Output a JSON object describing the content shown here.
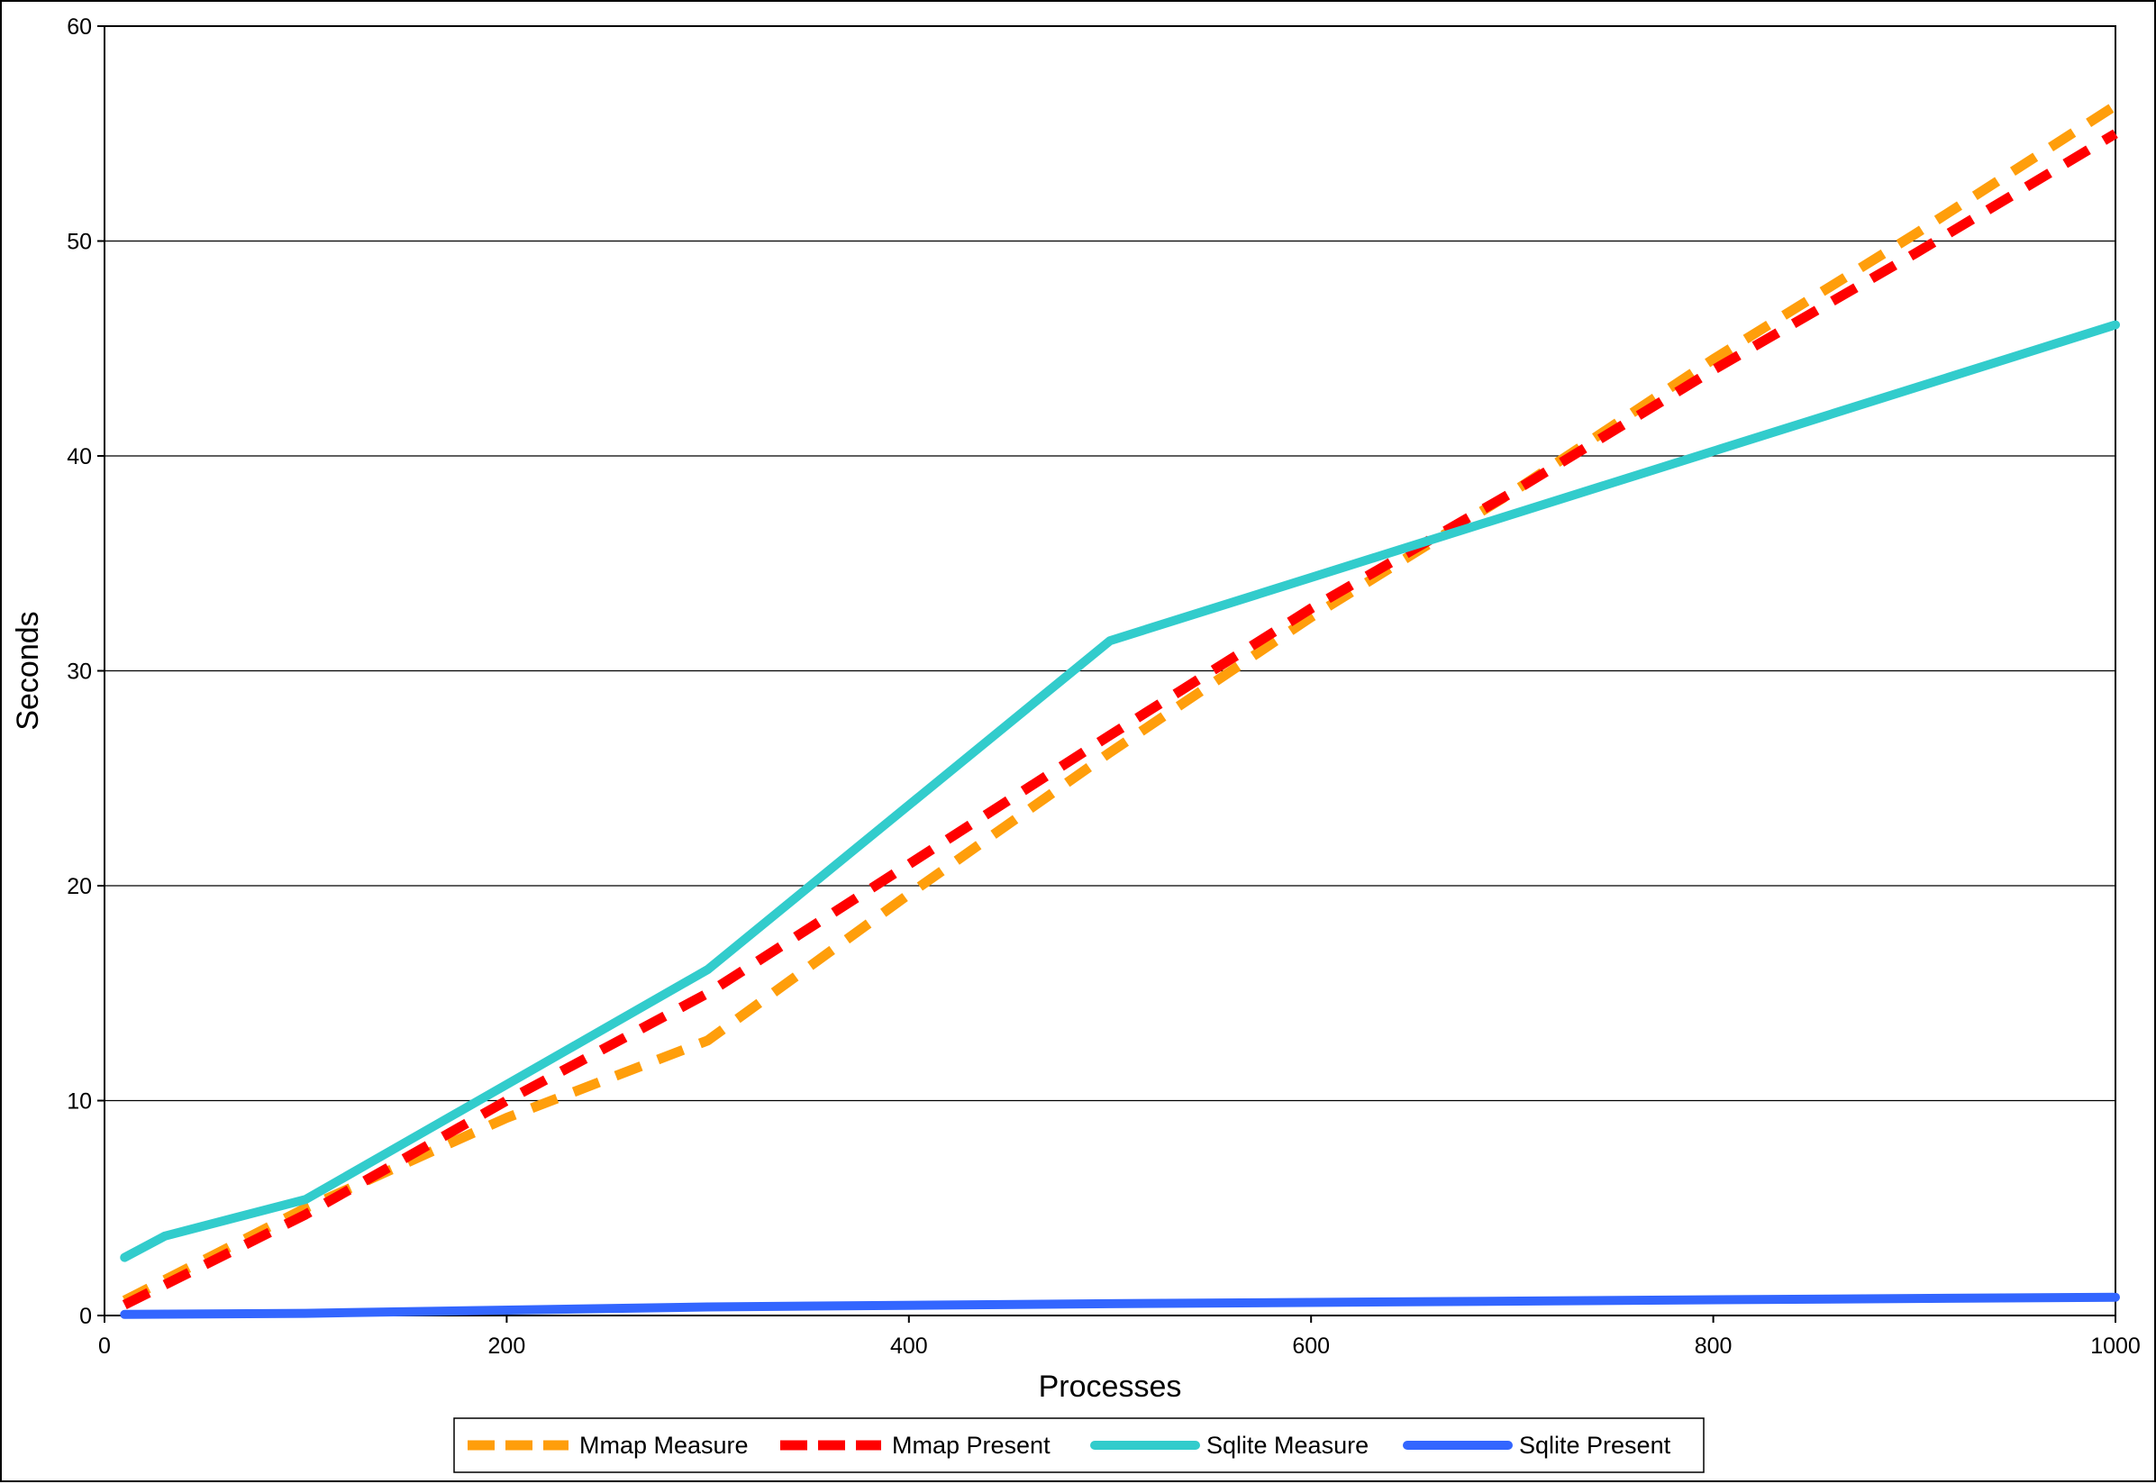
{
  "chart_data": {
    "type": "line",
    "xlabel": "Processes",
    "ylabel": "Seconds",
    "xlim": [
      0,
      1000
    ],
    "ylim": [
      0,
      60
    ],
    "xticks": [
      0,
      200,
      400,
      600,
      800,
      1000
    ],
    "yticks": [
      0,
      10,
      20,
      30,
      40,
      50,
      60
    ],
    "grid": "horizontal",
    "legend_position": "bottom",
    "series": [
      {
        "name": "Mmap Measure",
        "color": "#FF9E0B",
        "dashed": true,
        "points": [
          [
            10,
            0.7
          ],
          [
            100,
            5.0
          ],
          [
            200,
            9.2
          ],
          [
            300,
            12.8
          ],
          [
            400,
            19.6
          ],
          [
            500,
            26.2
          ],
          [
            600,
            32.5
          ],
          [
            700,
            38.3
          ],
          [
            800,
            44.5
          ],
          [
            900,
            50.3
          ],
          [
            1000,
            56.3
          ]
        ]
      },
      {
        "name": "Mmap Present",
        "color": "#FF0000",
        "dashed": true,
        "points": [
          [
            10,
            0.5
          ],
          [
            100,
            4.7
          ],
          [
            200,
            10.0
          ],
          [
            300,
            15.0
          ],
          [
            400,
            21.0
          ],
          [
            500,
            27.0
          ],
          [
            600,
            32.9
          ],
          [
            700,
            38.3
          ],
          [
            800,
            44.0
          ],
          [
            900,
            49.4
          ],
          [
            1000,
            55.0
          ]
        ]
      },
      {
        "name": "Sqlite Measure",
        "color": "#32CCCC",
        "dashed": false,
        "points": [
          [
            10,
            2.7
          ],
          [
            30,
            3.7
          ],
          [
            100,
            5.4
          ],
          [
            300,
            16.1
          ],
          [
            500,
            31.4
          ],
          [
            1000,
            46.1
          ]
        ]
      },
      {
        "name": "Sqlite Present",
        "color": "#3366FF",
        "dashed": false,
        "points": [
          [
            10,
            0.05
          ],
          [
            100,
            0.1
          ],
          [
            300,
            0.4
          ],
          [
            500,
            0.55
          ],
          [
            1000,
            0.85
          ]
        ]
      }
    ]
  }
}
